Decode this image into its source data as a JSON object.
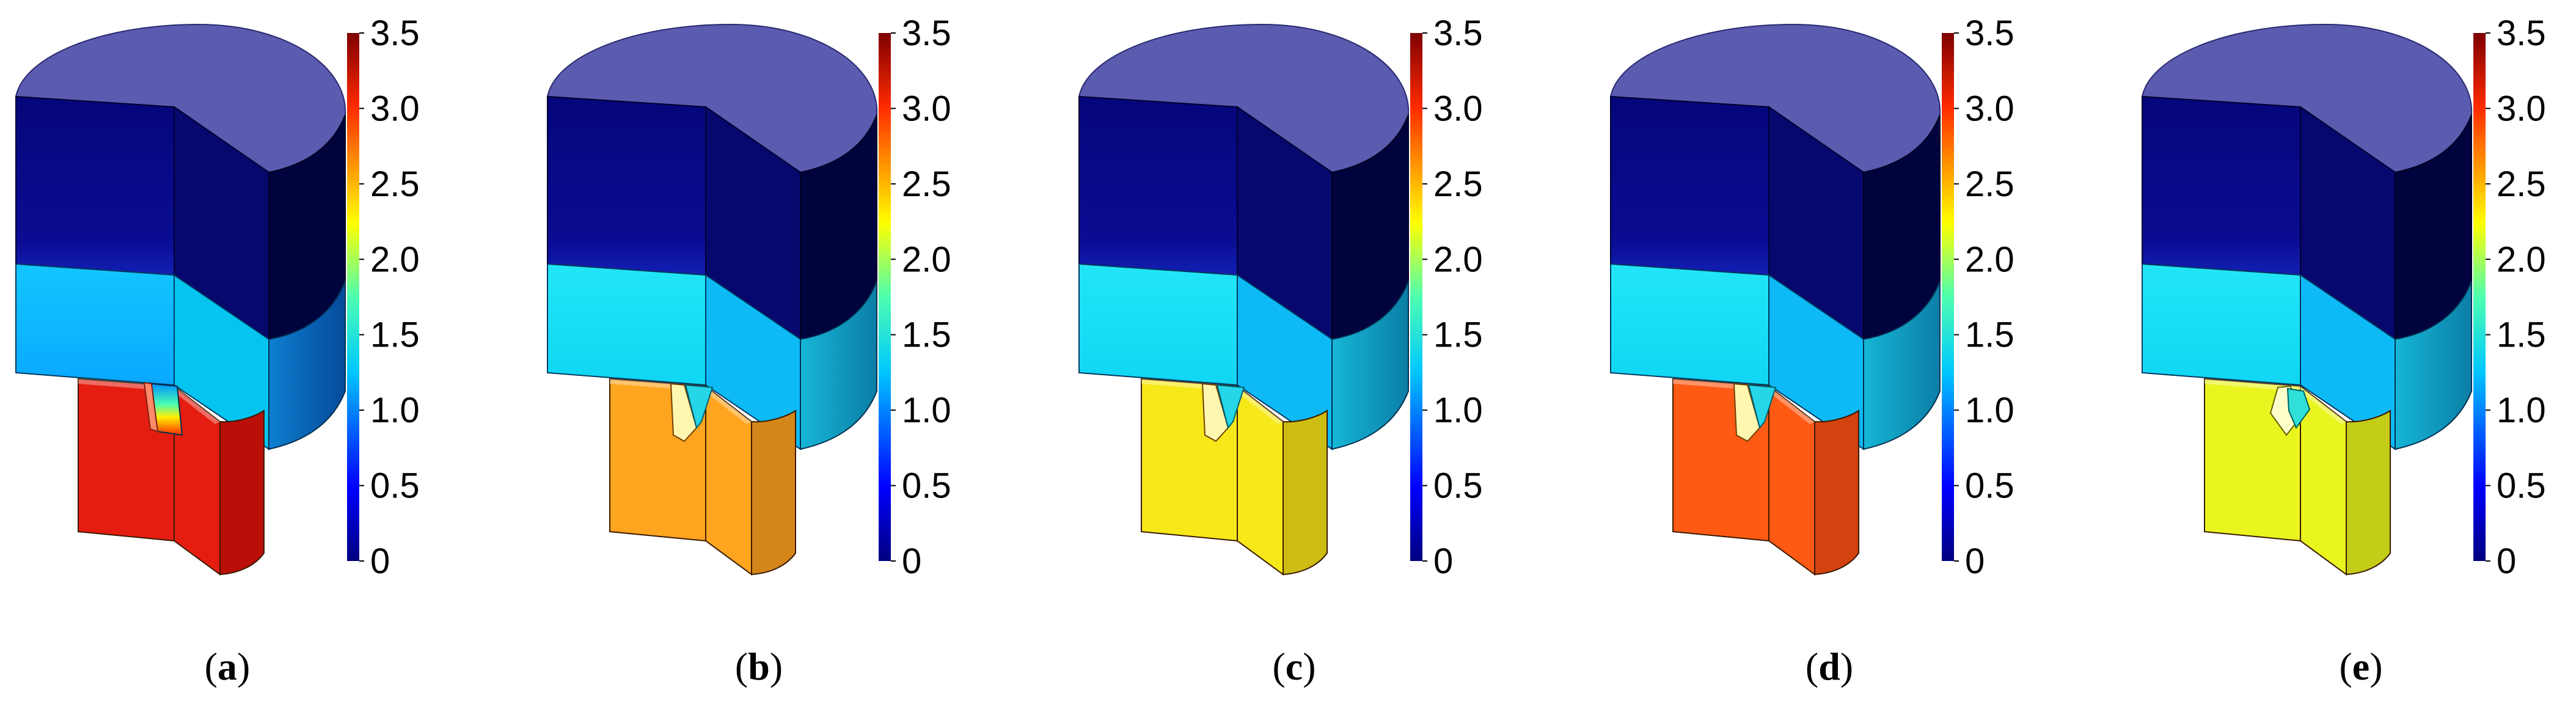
{
  "colorbar": {
    "ticks": [
      "3.5",
      "3.0",
      "2.5",
      "2.0",
      "1.5",
      "1.0",
      "0.5",
      "0"
    ]
  },
  "panels": [
    {
      "letter": "a",
      "lower_color": "#e51d10",
      "lower_side": "#b90f08",
      "notch": "rainbow"
    },
    {
      "letter": "b",
      "lower_color": "#ffa51f",
      "lower_side": "#d4861a",
      "notch": "funnel"
    },
    {
      "letter": "c",
      "lower_color": "#f7e81a",
      "lower_side": "#cdbc14",
      "notch": "funnel"
    },
    {
      "letter": "d",
      "lower_color": "#ff5a14",
      "lower_side": "#d2430f",
      "notch": "funnel"
    },
    {
      "letter": "e",
      "lower_color": "#eaf520",
      "lower_side": "#c3cd18",
      "notch": "diamond"
    }
  ],
  "colors": {
    "top_face": "#5b5bb0",
    "upper_front": "#06087f",
    "upper_side": "#01033f",
    "middle_front": "#09b0ff",
    "middle_right": "#05c4f0",
    "middle_side": "#086cc2",
    "middle_front_light": "#22e8f4"
  }
}
